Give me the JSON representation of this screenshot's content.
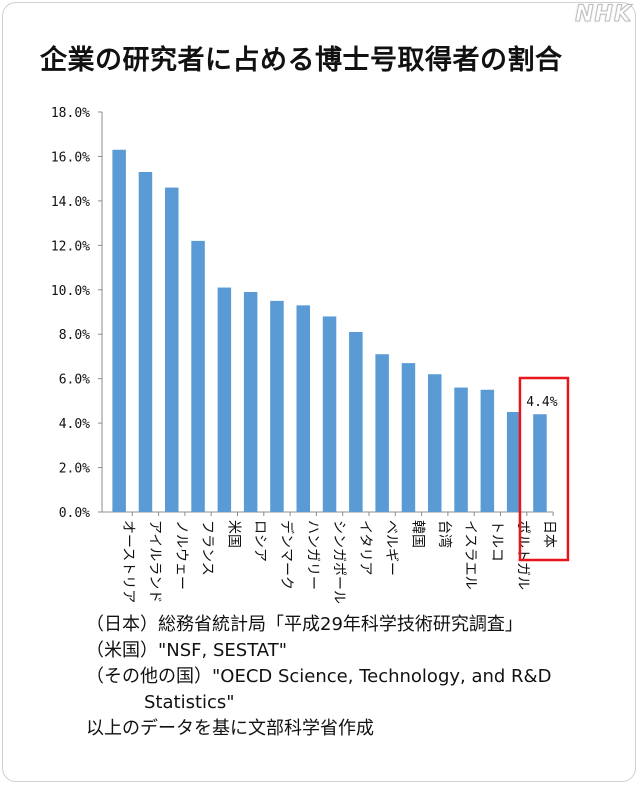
{
  "brand": "NHK",
  "chart_data": {
    "type": "bar",
    "title": "企業の研究者に占める博士号取得者の割合",
    "categories": [
      "オーストリア",
      "アイルランド",
      "ノルウェー",
      "フランス",
      "米国",
      "ロシア",
      "デンマーク",
      "ハンガリー",
      "シンガポール",
      "イタリア",
      "ベルギー",
      "韓国",
      "台湾",
      "イスラエル",
      "トルコ",
      "ポルトガル",
      "日本"
    ],
    "values": [
      16.3,
      15.3,
      14.6,
      12.2,
      10.1,
      9.9,
      9.5,
      9.3,
      8.8,
      8.1,
      7.1,
      6.7,
      6.2,
      5.6,
      5.5,
      4.5,
      4.4
    ],
    "ylim": [
      0,
      18
    ],
    "yticks": [
      "0.0%",
      "2.0%",
      "4.0%",
      "6.0%",
      "8.0%",
      "10.0%",
      "12.0%",
      "14.0%",
      "16.0%",
      "18.0%"
    ],
    "highlight": {
      "category": "日本",
      "label": "4.4%"
    },
    "bar_color": "#5b9bd5",
    "highlight_color": "#e8161c",
    "grid": false
  },
  "notes": [
    "（日本）総務省統計局「平成29年科学技術研究調査」",
    "（米国）\"NSF, SESTAT\"",
    "（その他の国）\"OECD Science, Technology, and R&D",
    "Statistics\"",
    "以上のデータを基に文部科学省作成"
  ]
}
